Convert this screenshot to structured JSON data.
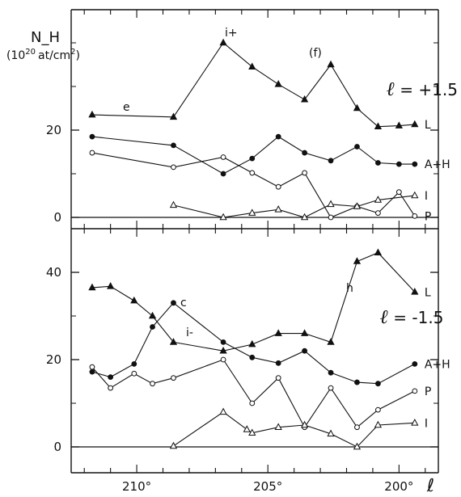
{
  "chart_data": [
    {
      "type": "line",
      "panel": "top",
      "ylabel": "N_H",
      "yunit_prefix": "(10",
      "yunit_exp": "20",
      "yunit_suffix": "at/cm",
      "yunit_sq": "2",
      "yunit_close": ")",
      "latitude_label": "+1.5",
      "xlim": [
        212.5,
        198.5
      ],
      "ylim": [
        0,
        40
      ],
      "yticks": [
        "0",
        "20"
      ],
      "annotations": [
        "e",
        "i+",
        "(f)"
      ],
      "series": [
        {
          "name": "L",
          "marker": "triangle-filled",
          "x": [
            211.7,
            208.6,
            206.7,
            205.6,
            204.6,
            203.6,
            202.6,
            201.6,
            200.8,
            200.0,
            199.4
          ],
          "y": [
            23.5,
            23.0,
            40.0,
            34.5,
            30.5,
            27.0,
            35.0,
            25.0,
            20.8,
            21.0,
            21.3
          ]
        },
        {
          "name": "A+H",
          "marker": "circle-filled",
          "x": [
            211.7,
            208.6,
            206.7,
            205.6,
            204.6,
            203.6,
            202.6,
            201.6,
            200.8,
            200.0,
            199.4
          ],
          "y": [
            18.5,
            16.5,
            10.0,
            13.5,
            18.5,
            14.8,
            13.0,
            16.2,
            12.5,
            12.2,
            12.2
          ]
        },
        {
          "name": "P",
          "marker": "circle-open",
          "x": [
            211.7,
            208.6,
            206.7,
            205.6,
            204.6,
            203.6,
            202.6,
            201.6,
            200.8,
            200.0,
            199.4
          ],
          "y": [
            14.8,
            11.5,
            13.8,
            10.2,
            7.0,
            10.2,
            0.0,
            2.5,
            1.0,
            5.8,
            0.3
          ]
        },
        {
          "name": "I",
          "marker": "triangle-open",
          "x": [
            208.6,
            206.7,
            205.6,
            204.6,
            203.6,
            202.6,
            201.6,
            200.8,
            199.4
          ],
          "y": [
            2.8,
            0.0,
            1.0,
            1.8,
            0.0,
            3.0,
            2.5,
            4.0,
            5.0
          ]
        }
      ]
    },
    {
      "type": "line",
      "panel": "bottom",
      "latitude_label": "-1.5",
      "xlim": [
        212.5,
        198.5
      ],
      "ylim": [
        0,
        50
      ],
      "yticks": [
        "0",
        "20",
        "40"
      ],
      "xticks": [
        "210°",
        "205°",
        "200°"
      ],
      "xtick_values": [
        210,
        205,
        200
      ],
      "xlabel": "ℓ",
      "annotations": [
        "c",
        "i-",
        "h"
      ],
      "series": [
        {
          "name": "L",
          "marker": "triangle-filled",
          "x": [
            211.7,
            211.0,
            210.1,
            209.4,
            208.6,
            206.7,
            205.6,
            204.6,
            203.6,
            202.6,
            201.6,
            200.8,
            199.4
          ],
          "y": [
            36.5,
            36.8,
            33.5,
            30.0,
            24.0,
            22.0,
            23.5,
            26.0,
            26.0,
            24.0,
            42.5,
            44.5,
            35.5
          ]
        },
        {
          "name": "A+H",
          "marker": "circle-filled",
          "x": [
            211.7,
            211.0,
            210.1,
            209.4,
            208.6,
            206.7,
            205.6,
            204.6,
            203.6,
            202.6,
            201.6,
            200.8,
            199.4
          ],
          "y": [
            17.2,
            16.0,
            19.0,
            27.5,
            33.0,
            24.0,
            20.5,
            19.2,
            22.0,
            17.0,
            14.8,
            14.5,
            19.0
          ]
        },
        {
          "name": "P",
          "marker": "circle-open",
          "x": [
            211.7,
            211.0,
            210.1,
            209.4,
            208.6,
            206.7,
            205.6,
            204.6,
            203.6,
            202.6,
            201.6,
            200.8,
            199.4
          ],
          "y": [
            18.3,
            13.5,
            16.8,
            14.5,
            15.8,
            20.0,
            10.0,
            15.8,
            4.5,
            13.5,
            4.5,
            8.5,
            12.8
          ]
        },
        {
          "name": "I",
          "marker": "triangle-open",
          "x": [
            208.6,
            206.7,
            205.8,
            205.6,
            204.6,
            203.6,
            202.6,
            201.6,
            200.8,
            199.4
          ],
          "y": [
            0.2,
            8.0,
            4.0,
            3.2,
            4.5,
            5.0,
            3.0,
            0.0,
            5.0,
            5.5
          ]
        }
      ]
    }
  ]
}
